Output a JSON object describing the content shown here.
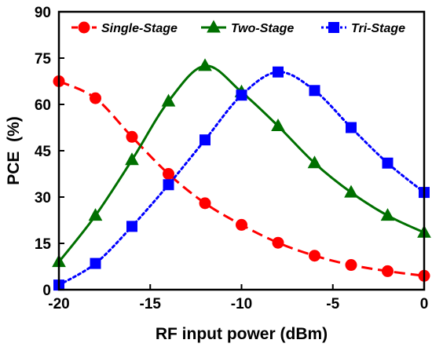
{
  "chart_data": {
    "type": "line",
    "xlabel": "RF input power (dBm)",
    "ylabel": "PCE  (%)",
    "xlim": [
      -20,
      0
    ],
    "ylim": [
      0,
      90
    ],
    "xticks": [
      -20,
      -15,
      -10,
      -5,
      0
    ],
    "yticks": [
      0,
      15,
      30,
      45,
      60,
      75,
      90
    ],
    "grid": false,
    "legend_position": "top",
    "series": [
      {
        "name": "Single-Stage",
        "color": "#ff0000",
        "line_style": "dashed",
        "marker": "circle",
        "x": [
          -20,
          -18,
          -16,
          -14,
          -12,
          -10,
          -8,
          -6,
          -4,
          -2,
          0
        ],
        "y": [
          67.5,
          62,
          49.5,
          37.5,
          28,
          21,
          15.2,
          11,
          8,
          6,
          4.5
        ]
      },
      {
        "name": "Two-Stage",
        "color": "#007000",
        "line_style": "solid",
        "marker": "triangle",
        "x": [
          -20,
          -18,
          -16,
          -14,
          -12,
          -10,
          -8,
          -6,
          -4,
          -2,
          0
        ],
        "y": [
          9,
          24,
          42,
          61,
          72.5,
          64,
          53,
          41,
          31.5,
          24,
          18.5
        ]
      },
      {
        "name": "Tri-Stage",
        "color": "#0000ff",
        "line_style": "dotted",
        "marker": "square",
        "x": [
          -20,
          -18,
          -16,
          -14,
          -12,
          -10,
          -8,
          -6,
          -4,
          -2,
          0
        ],
        "y": [
          1.5,
          8.5,
          20.5,
          34,
          48.5,
          63,
          70.5,
          64.5,
          52.5,
          41,
          31.5
        ]
      }
    ]
  }
}
